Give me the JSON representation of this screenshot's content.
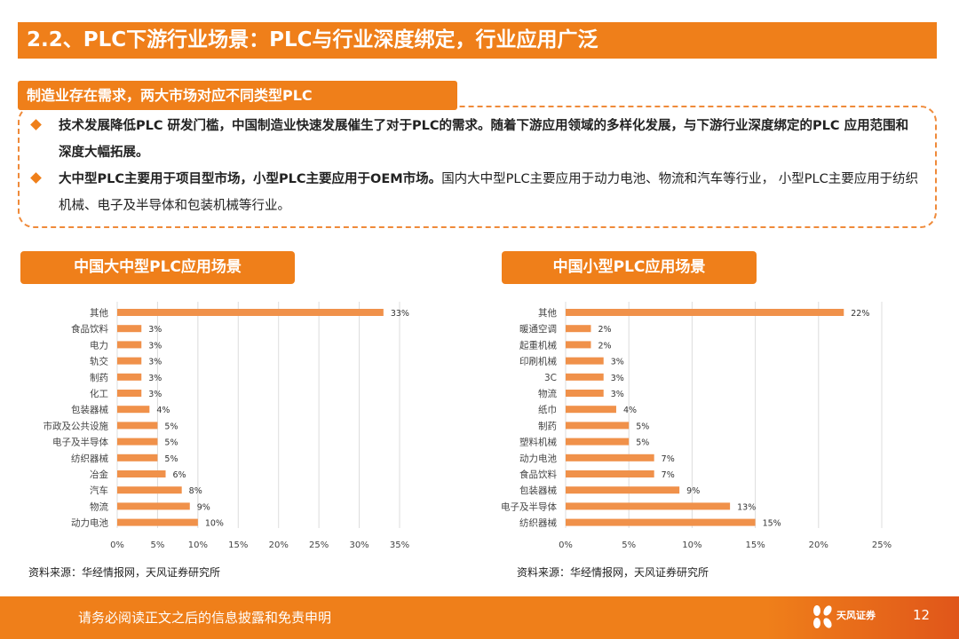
{
  "title": "2.2、PLC下游行业场景：PLC与行业深度绑定，行业应用广泛",
  "subtitle": "制造业存在需求，两大市场对应不同类型PLC",
  "bullets": [
    {
      "bold": "技术发展降低PLC 研发门槛，中国制造业快速发展催生了对于PLC的需求。随着下游应用领域的多样化发展，与下游行业深度绑定的PLC 应用范围和深度大幅拓展。",
      "normal": ""
    },
    {
      "bold": "大中型PLC主要用于项目型市场，小型PLC主要应用于OEM市场。",
      "normal": "国内大中型PLC主要应用于动力电池、物流和汽车等行业， 小型PLC主要应用于纺织机械、电子及半导体和包装机械等行业。"
    }
  ],
  "colors": {
    "accent": "#EF7F1A",
    "bar": "#F0914A"
  },
  "chart_data": [
    {
      "type": "bar",
      "orientation": "horizontal",
      "title": "中国大中型PLC应用场景",
      "categories": [
        "其他",
        "食品饮料",
        "电力",
        "轨交",
        "制药",
        "化工",
        "包装器械",
        "市政及公共设施",
        "电子及半导体",
        "纺织器械",
        "冶金",
        "汽车",
        "物流",
        "动力电池"
      ],
      "values": [
        33,
        3,
        3,
        3,
        3,
        3,
        4,
        5,
        5,
        5,
        6,
        8,
        9,
        10
      ],
      "data_labels": [
        "33%",
        "3%",
        "3%",
        "3%",
        "3%",
        "3%",
        "4%",
        "5%",
        "5%",
        "5%",
        "6%",
        "8%",
        "9%",
        "10%"
      ],
      "xlim": [
        0,
        35
      ],
      "xticks": [
        "0%",
        "5%",
        "10%",
        "15%",
        "20%",
        "25%",
        "30%",
        "35%"
      ],
      "grid": true,
      "source": "资料来源：华经情报网，天风证券研究所"
    },
    {
      "type": "bar",
      "orientation": "horizontal",
      "title": "中国小型PLC应用场景",
      "categories": [
        "其他",
        "暖通空调",
        "起重机械",
        "印刷机械",
        "3C",
        "物流",
        "纸巾",
        "制药",
        "塑料机械",
        "动力电池",
        "食品饮料",
        "包装器械",
        "电子及半导体",
        "纺织器械"
      ],
      "values": [
        22,
        2,
        2,
        3,
        3,
        3,
        4,
        5,
        5,
        7,
        7,
        9,
        13,
        15
      ],
      "data_labels": [
        "22%",
        "2%",
        "2%",
        "3%",
        "3%",
        "3%",
        "4%",
        "5%",
        "5%",
        "7%",
        "7%",
        "9%",
        "13%",
        "15%"
      ],
      "xlim": [
        0,
        25
      ],
      "xticks": [
        "0%",
        "5%",
        "10%",
        "15%",
        "20%",
        "25%"
      ],
      "grid": true,
      "source": "资料来源：华经情报网，天风证券研究所"
    }
  ],
  "footer": {
    "disclaimer": "请务必阅读正文之后的信息披露和免责申明",
    "logo": "天风证券 TF SECURITIES",
    "page": "12"
  }
}
